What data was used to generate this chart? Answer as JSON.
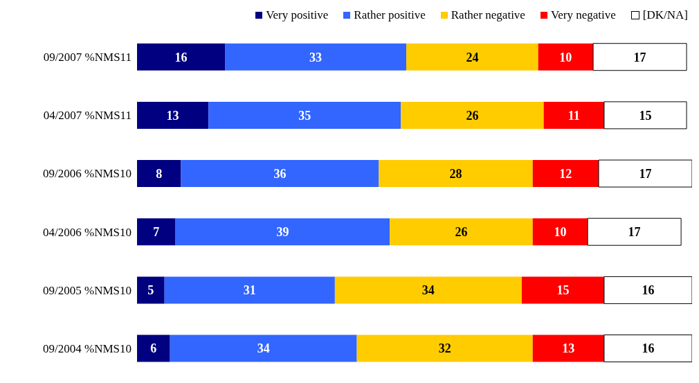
{
  "chart_data": {
    "type": "bar",
    "orientation": "horizontal",
    "stacked": true,
    "data_labels": true,
    "legend": "top right",
    "categories": [
      "09/2007 %NMS11",
      "04/2007 %NMS11",
      "09/2006 %NMS10",
      "04/2006 %NMS10",
      "09/2005 %NMS10",
      "09/2004 %NMS10"
    ],
    "series": [
      {
        "name": "Very positive",
        "color": "#000080",
        "values": [
          16,
          13,
          8,
          7,
          5,
          6
        ]
      },
      {
        "name": "Rather positive",
        "color": "#3366ff",
        "values": [
          33,
          35,
          36,
          39,
          31,
          34
        ]
      },
      {
        "name": "Rather negative",
        "color": "#ffcc00",
        "values": [
          24,
          26,
          28,
          26,
          34,
          32
        ]
      },
      {
        "name": "Very negative",
        "color": "#ff0000",
        "values": [
          10,
          11,
          12,
          10,
          15,
          13
        ]
      },
      {
        "name": "[DK/NA]",
        "color": "#ffffff",
        "values": [
          17,
          15,
          17,
          17,
          16,
          16
        ]
      }
    ]
  }
}
